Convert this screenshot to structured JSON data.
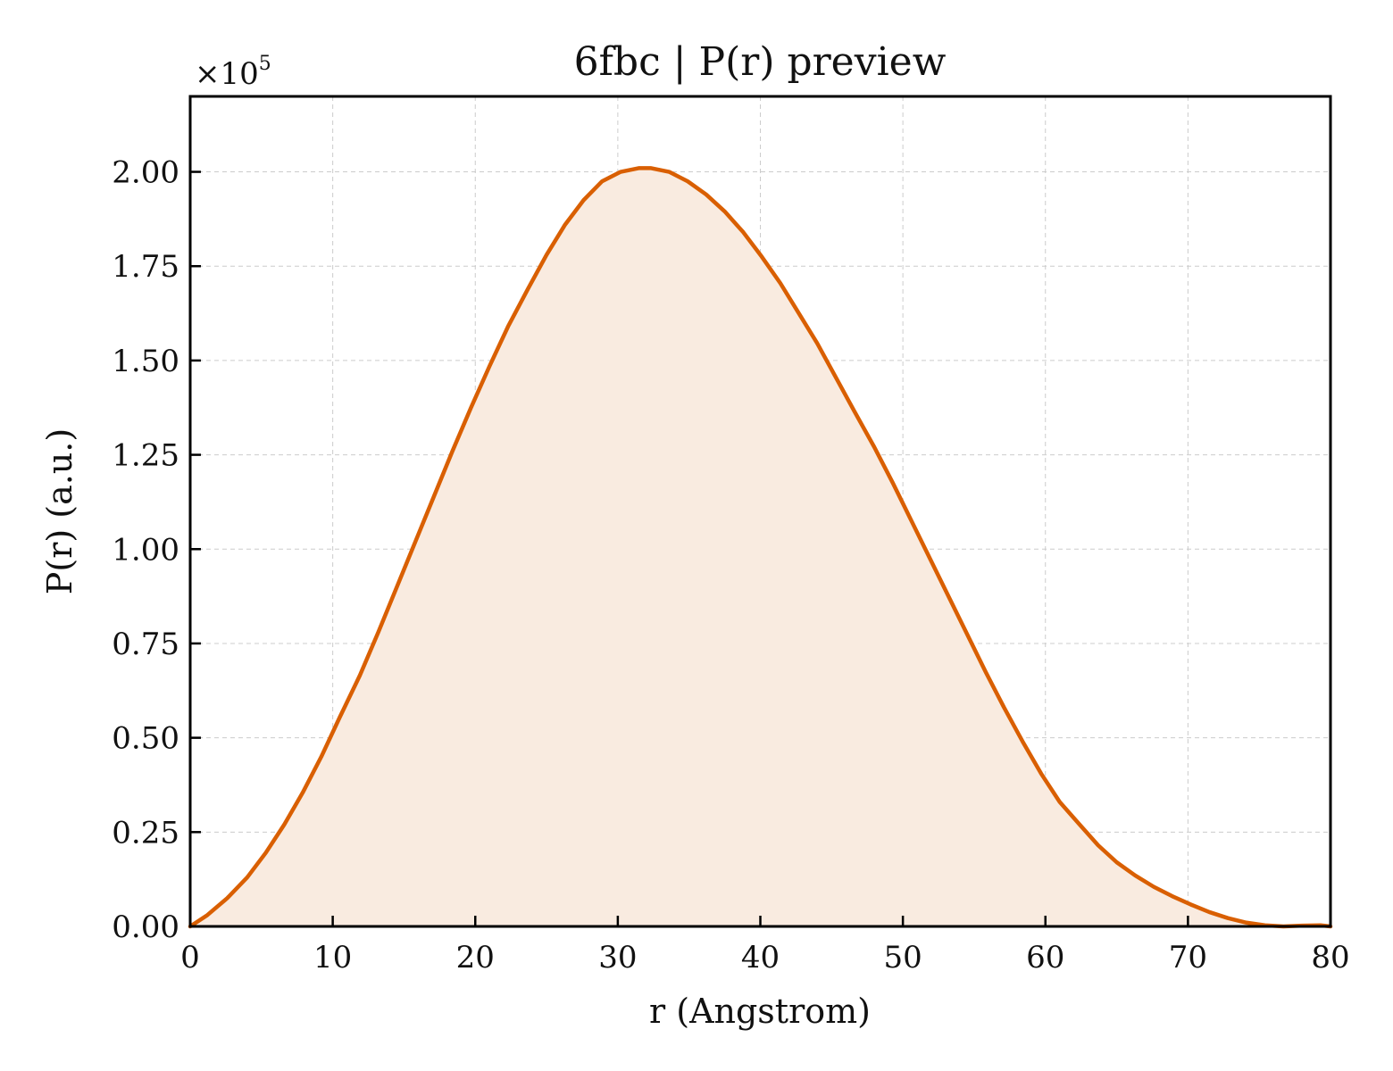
{
  "chart_data": {
    "type": "area",
    "title": "6fbc | P(r) preview",
    "xlabel": "r (Angstrom)",
    "ylabel": "P(r) (a.u.)",
    "y_multiplier_label": "×10",
    "y_multiplier_exponent": "5",
    "xlim": [
      0,
      80
    ],
    "ylim": [
      0,
      2.2
    ],
    "y_scale_factor": 100000,
    "x_ticks": [
      0,
      10,
      20,
      30,
      40,
      50,
      60,
      70,
      80
    ],
    "x_tick_labels": [
      "0",
      "10",
      "20",
      "30",
      "40",
      "50",
      "60",
      "70",
      "80"
    ],
    "y_ticks": [
      0,
      0.25,
      0.5,
      0.75,
      1.0,
      1.25,
      1.5,
      1.75,
      2.0
    ],
    "y_tick_labels": [
      "0.00",
      "0.25",
      "0.50",
      "0.75",
      "1.00",
      "1.25",
      "1.50",
      "1.75",
      "2.00"
    ],
    "grid": true,
    "series": [
      {
        "color": "#d95f02",
        "fill_color": "#f9ebe0",
        "x": [
          0,
          1.2,
          2.6,
          4,
          5.3,
          6.6,
          7.9,
          9.2,
          10.5,
          11.9,
          13.2,
          14.5,
          15.8,
          17.1,
          18.4,
          19.7,
          21,
          22.3,
          23.7,
          25,
          26.3,
          27.6,
          28.9,
          30.2,
          31.5,
          32.3,
          33.6,
          34.9,
          36.2,
          37.5,
          38.8,
          40.1,
          41.4,
          42.7,
          44,
          45.3,
          46.6,
          48,
          49.3,
          50.6,
          51.9,
          53.2,
          54.5,
          55.8,
          57.1,
          58.4,
          59.7,
          61,
          62.4,
          63.7,
          65,
          66.3,
          67.6,
          68.9,
          70.2,
          71.5,
          72.8,
          74.1,
          75.4,
          76.7,
          78,
          79.3,
          80
        ],
        "y": [
          0.0,
          0.03,
          0.075,
          0.13,
          0.195,
          0.27,
          0.355,
          0.45,
          0.555,
          0.665,
          0.78,
          0.9,
          1.02,
          1.14,
          1.26,
          1.375,
          1.485,
          1.59,
          1.69,
          1.78,
          1.86,
          1.925,
          1.975,
          2.0,
          2.01,
          2.01,
          2.0,
          1.975,
          1.94,
          1.895,
          1.84,
          1.775,
          1.705,
          1.625,
          1.545,
          1.455,
          1.365,
          1.27,
          1.175,
          1.075,
          0.975,
          0.875,
          0.775,
          0.675,
          0.58,
          0.49,
          0.405,
          0.33,
          0.27,
          0.215,
          0.17,
          0.135,
          0.105,
          0.08,
          0.058,
          0.038,
          0.022,
          0.01,
          0.003,
          0.0,
          0.002,
          0.003,
          0.0
        ]
      }
    ]
  }
}
